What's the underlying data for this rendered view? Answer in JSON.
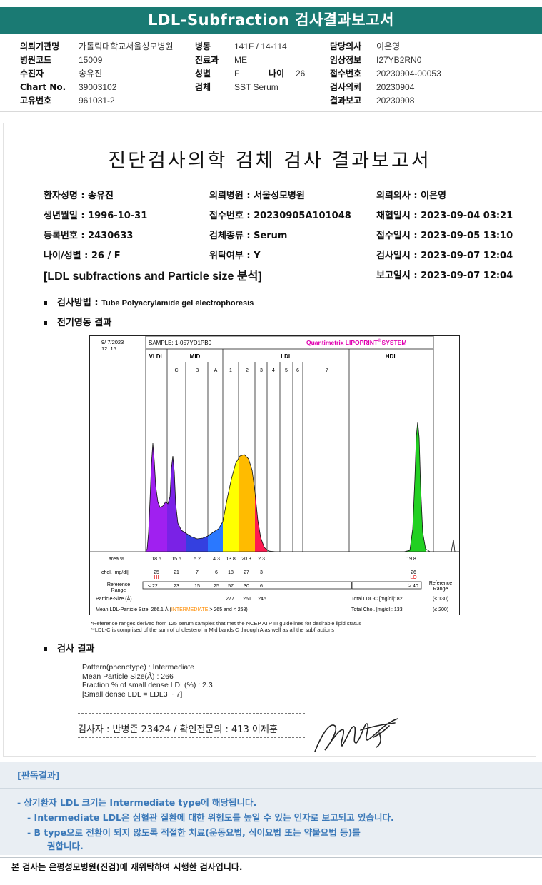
{
  "title": "LDL-Subfraction 검사결과보고서",
  "header": {
    "col1": [
      {
        "label": "의뢰기관명",
        "value": "가톨릭대학교서울성모병원"
      },
      {
        "label": "병원코드",
        "value": "15009"
      },
      {
        "label": "수진자",
        "value": "송유진"
      },
      {
        "label": "Chart No.",
        "value": "39003102"
      },
      {
        "label": "고유번호",
        "value": "961031-2"
      }
    ],
    "col2": [
      {
        "label": "병동",
        "value": "141F / 14-114"
      },
      {
        "label": "진료과",
        "value": "ME"
      },
      {
        "label": "성별",
        "value": "F"
      },
      {
        "label": "검체",
        "value": "SST Serum"
      }
    ],
    "age_label": "나이",
    "age_value": "26",
    "col3": [
      {
        "label": "담당의사",
        "value": "이은영"
      },
      {
        "label": "임상정보",
        "value": "I27YB2RN0"
      },
      {
        "label": "접수번호",
        "value": "20230904-00053"
      },
      {
        "label": "검사의뢰",
        "value": "20230904"
      },
      {
        "label": "결과보고",
        "value": "20230908"
      }
    ]
  },
  "report": {
    "title": "진단검사의학 검체 검사 결과보고서",
    "info_col1": [
      "환자성명 : 송유진",
      "생년월일 : 1996-10-31",
      "등록번호 : 2430633",
      "나이/성별 : 26 / F"
    ],
    "info_col2": [
      "의뢰병원 : 서울성모병원",
      "접수번호 : 20230905A101048",
      "검체종류 : Serum",
      "위탁여부 : Y"
    ],
    "info_col3": [
      "의뢰의사 : 이은영",
      "채혈일시 : 2023-09-04 03:21",
      "접수일시 : 2023-09-05 13:10",
      "검사일시 : 2023-09-07 12:04",
      "보고일시 : 2023-09-07 12:04"
    ],
    "section_title": "[LDL subfractions and Particle size 분석]",
    "method_label": "검사방법 : ",
    "method_value": "Tube Polyacrylamide gel electrophoresis",
    "electro_label": "전기영동 결과",
    "result_label": "검사 결과"
  },
  "chart": {
    "date": "9/ 7/2023",
    "time": "12: 15",
    "sample": "SAMPLE:   1-057YD1PB0",
    "brand": "Quantimetrix LIPOPRINT",
    "brand_sup": "®",
    "brand_suffix": "SYSTEM",
    "groups": [
      "VLDL",
      "MID",
      "LDL",
      "HDL"
    ],
    "bands": [
      "C",
      "B",
      "A",
      "1",
      "2",
      "3",
      "4",
      "5",
      "6",
      "7"
    ],
    "row_area_label": "area %",
    "row_chol_label": "chol. [mg/dl]",
    "row_ref_label1": "Reference",
    "row_ref_label2": "Range",
    "area": [
      "18.6",
      "15.6",
      "5.2",
      "4.3",
      "13.8",
      "20.3",
      "2.3",
      "19.8"
    ],
    "chol": [
      "25",
      "21",
      "7",
      "6",
      "18",
      "27",
      "3",
      "26"
    ],
    "flag_hi": "HI",
    "flag_lo": "LO",
    "ref": [
      "≤ 22",
      "23",
      "15",
      "25",
      "57",
      "30",
      "6"
    ],
    "ref_hdl": "≥ 40",
    "ref_right1": "Reference",
    "ref_right2": "Range",
    "particle_size_label": "Particle-Size (Å)",
    "particle_sizes": [
      "277",
      "261",
      "245"
    ],
    "mean_label": "Mean LDL-Particle Size:   266.1 Å  (",
    "mean_inter": "INTERMEDIATE",
    "mean_rest": ";> 265 and < 268)",
    "total_ldl": "Total LDL-C [mg/dl]:   82",
    "total_ldl_ref": "(≤ 130)",
    "total_chol": "Total Chol. [mg/dl]:   133",
    "total_chol_ref": "(≤ 200)",
    "colors": {
      "vldl": "#a020f0",
      "midc": "#7a22e6",
      "midb": "#3440e0",
      "mida": "#2a78ff",
      "ldl1": "#ffff00",
      "ldl2": "#ffbb00",
      "ldl3": "#ff1a50",
      "hdl": "#22d022"
    }
  },
  "notes": [
    "*Reference ranges derived from 125 serum samples that met the NCEP ATP III guidelines for desirable lipid status",
    "**LDL-C is comprised of the sum of cholesterol in Mid bands C through A as well as all the subfractions"
  ],
  "results": [
    "Pattern(phenotype) : Intermediate",
    "Mean Particle Size(Å) : 266",
    "Fraction % of small dense LDL(%) : 2.3",
    "[Small dense LDL = LDL3 ~ 7]"
  ],
  "signer": "검사자 : 반병준  23424   /  확인전문의 : 413  이제훈",
  "reading": {
    "title": "[판독결과]",
    "lines": [
      "-  상기환자 LDL 크기는 Intermediate type에 해당됩니다.",
      "-  Intermediate LDL은 심혈관 질환에 대한 위험도를 높일 수 있는 인자로 보고되고 있습니다.",
      "-  B type으로 전환이 되지 않도록 적절한 치료(운동요법, 식이요법 또는 약물요법 등)를",
      "권합니다."
    ]
  },
  "footer": "본 검사는 은평성모병원(진검)에 재위탁하여 시행한 검사입니다."
}
